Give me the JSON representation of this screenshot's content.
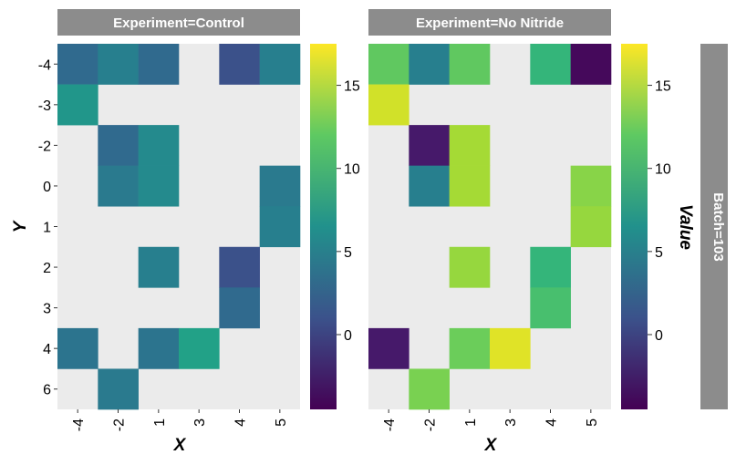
{
  "chart_data": {
    "type": "heatmap",
    "colormap": "viridis",
    "value_range": [
      -4.5,
      17.5
    ],
    "colorbar": {
      "label": "Value",
      "ticks": [
        "0",
        "5",
        "10",
        "15"
      ]
    },
    "row_strip": "Batch=103",
    "xlabel": "X",
    "ylabel": "Y",
    "x_categories": [
      "-4",
      "-2",
      "1",
      "3",
      "4",
      "5"
    ],
    "y_categories": [
      "-4",
      "-3",
      "-2",
      "0",
      "1",
      "2",
      "3",
      "4",
      "6"
    ],
    "missing_color": "#ebebeb",
    "strip_color": "#8c8c8c",
    "panels": [
      {
        "title": "Experiment=Control",
        "cells": [
          {
            "x": "-4",
            "y": "-4",
            "value": 3
          },
          {
            "x": "-2",
            "y": "-4",
            "value": 5
          },
          {
            "x": "1",
            "y": "-4",
            "value": 3
          },
          {
            "x": "4",
            "y": "-4",
            "value": 1
          },
          {
            "x": "5",
            "y": "-4",
            "value": 5
          },
          {
            "x": "-4",
            "y": "-3",
            "value": 7
          },
          {
            "x": "-2",
            "y": "-2",
            "value": 3
          },
          {
            "x": "1",
            "y": "-2",
            "value": 6
          },
          {
            "x": "-2",
            "y": "0",
            "value": 4.5
          },
          {
            "x": "1",
            "y": "0",
            "value": 6
          },
          {
            "x": "5",
            "y": "0",
            "value": 4.5
          },
          {
            "x": "5",
            "y": "1",
            "value": 5
          },
          {
            "x": "1",
            "y": "2",
            "value": 5
          },
          {
            "x": "4",
            "y": "2",
            "value": 1
          },
          {
            "x": "4",
            "y": "3",
            "value": 3
          },
          {
            "x": "-4",
            "y": "4",
            "value": 4
          },
          {
            "x": "1",
            "y": "4",
            "value": 4
          },
          {
            "x": "3",
            "y": "4",
            "value": 8
          },
          {
            "x": "-2",
            "y": "6",
            "value": 4.5
          }
        ]
      },
      {
        "title": "Experiment=No Nitride",
        "cells": [
          {
            "x": "-4",
            "y": "-4",
            "value": 12
          },
          {
            "x": "-2",
            "y": "-4",
            "value": 5
          },
          {
            "x": "1",
            "y": "-4",
            "value": 12
          },
          {
            "x": "4",
            "y": "-4",
            "value": 10
          },
          {
            "x": "5",
            "y": "-4",
            "value": -4
          },
          {
            "x": "-4",
            "y": "-3",
            "value": 16
          },
          {
            "x": "-2",
            "y": "-2",
            "value": -3
          },
          {
            "x": "1",
            "y": "-2",
            "value": 14.5
          },
          {
            "x": "-2",
            "y": "0",
            "value": 5
          },
          {
            "x": "1",
            "y": "0",
            "value": 14.5
          },
          {
            "x": "5",
            "y": "0",
            "value": 13.5
          },
          {
            "x": "5",
            "y": "1",
            "value": 14
          },
          {
            "x": "1",
            "y": "2",
            "value": 14
          },
          {
            "x": "4",
            "y": "2",
            "value": 10
          },
          {
            "x": "4",
            "y": "3",
            "value": 11
          },
          {
            "x": "-4",
            "y": "4",
            "value": -3
          },
          {
            "x": "1",
            "y": "4",
            "value": 12.5
          },
          {
            "x": "3",
            "y": "4",
            "value": 16.5
          },
          {
            "x": "-2",
            "y": "6",
            "value": 13
          }
        ]
      }
    ]
  }
}
